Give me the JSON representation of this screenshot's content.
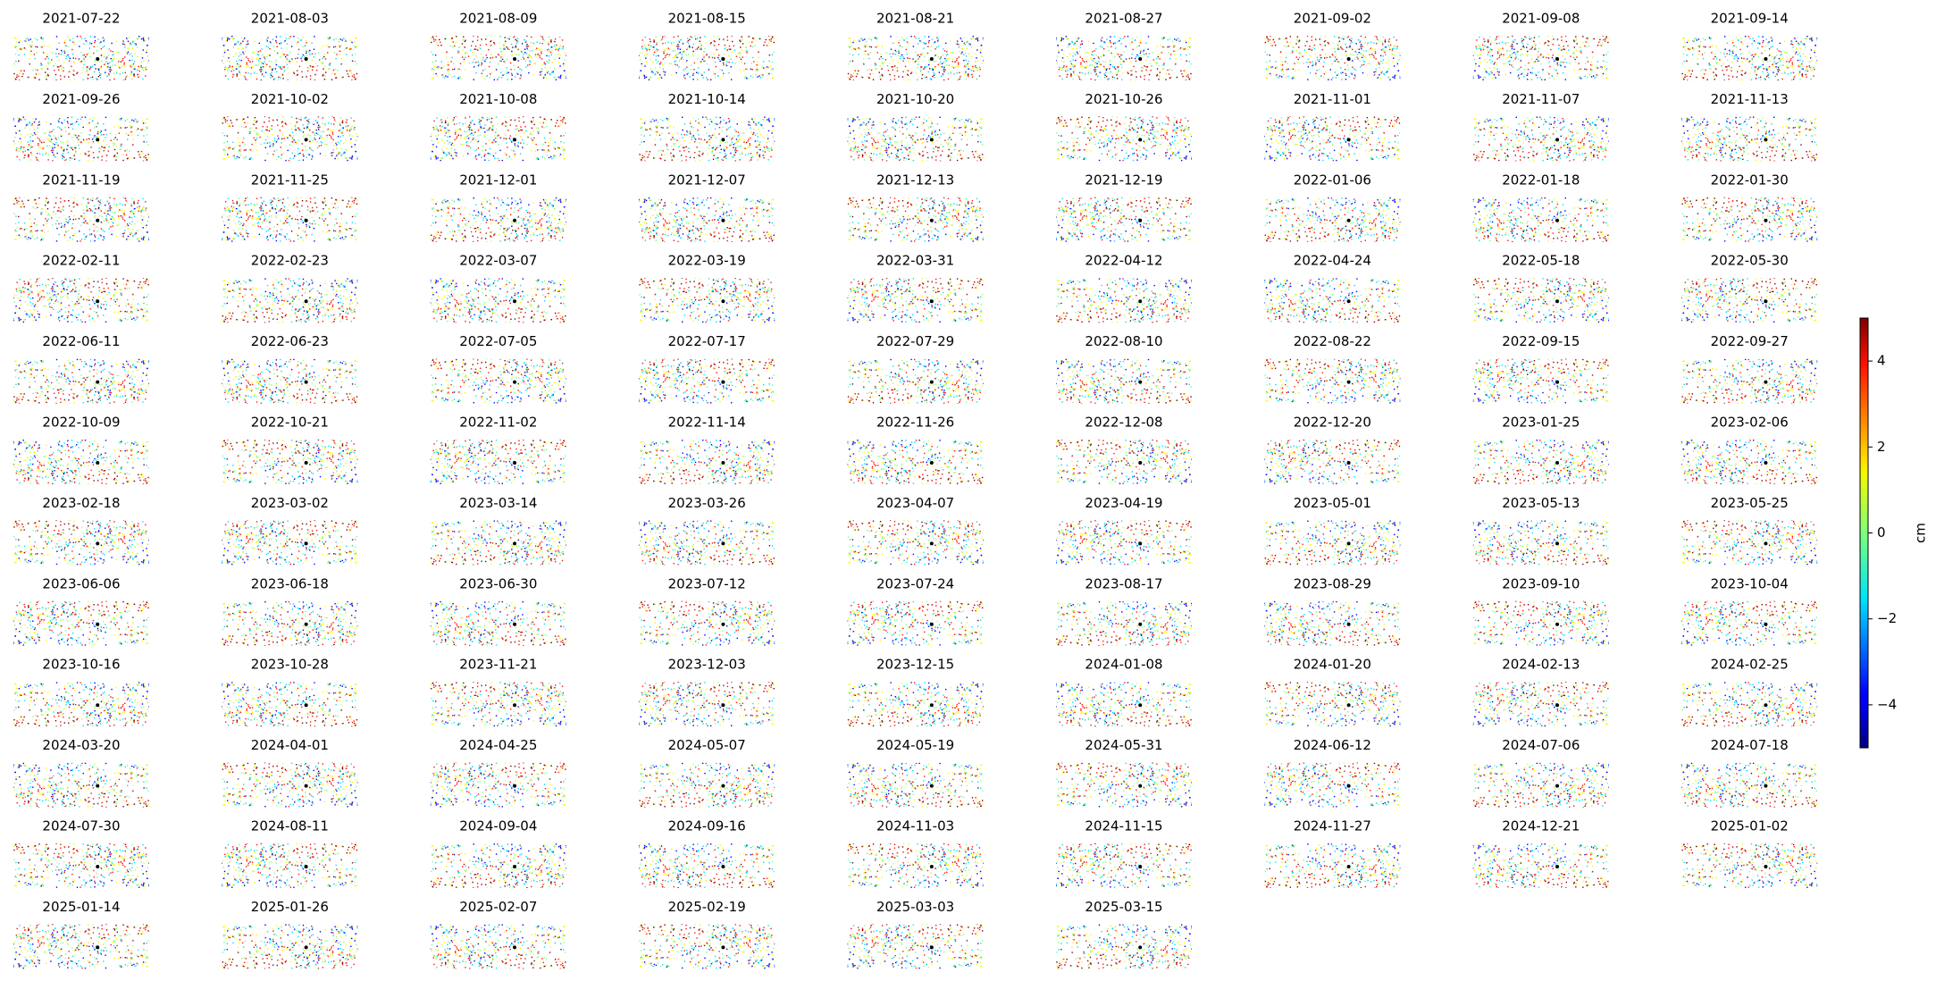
{
  "chart_data": {
    "type": "scatter",
    "colormap": "jet",
    "panels": [
      "2021-07-22",
      "2021-08-03",
      "2021-08-09",
      "2021-08-15",
      "2021-08-21",
      "2021-08-27",
      "2021-09-02",
      "2021-09-08",
      "2021-09-14",
      "2021-09-26",
      "2021-10-02",
      "2021-10-08",
      "2021-10-14",
      "2021-10-20",
      "2021-10-26",
      "2021-11-01",
      "2021-11-07",
      "2021-11-13",
      "2021-11-19",
      "2021-11-25",
      "2021-12-01",
      "2021-12-07",
      "2021-12-13",
      "2021-12-19",
      "2022-01-06",
      "2022-01-18",
      "2022-01-30",
      "2022-02-11",
      "2022-02-23",
      "2022-03-07",
      "2022-03-19",
      "2022-03-31",
      "2022-04-12",
      "2022-04-24",
      "2022-05-18",
      "2022-05-30",
      "2022-06-11",
      "2022-06-23",
      "2022-07-05",
      "2022-07-17",
      "2022-07-29",
      "2022-08-10",
      "2022-08-22",
      "2022-09-15",
      "2022-09-27",
      "2022-10-09",
      "2022-10-21",
      "2022-11-02",
      "2022-11-14",
      "2022-11-26",
      "2022-12-08",
      "2022-12-20",
      "2023-01-25",
      "2023-02-06",
      "2023-02-18",
      "2023-03-02",
      "2023-03-14",
      "2023-03-26",
      "2023-04-07",
      "2023-04-19",
      "2023-05-01",
      "2023-05-13",
      "2023-05-25",
      "2023-06-06",
      "2023-06-18",
      "2023-06-30",
      "2023-07-12",
      "2023-07-24",
      "2023-08-17",
      "2023-08-29",
      "2023-09-10",
      "2023-10-04",
      "2023-10-16",
      "2023-10-28",
      "2023-11-21",
      "2023-12-03",
      "2023-12-15",
      "2024-01-08",
      "2024-01-20",
      "2024-02-13",
      "2024-02-25",
      "2024-03-20",
      "2024-04-01",
      "2024-04-25",
      "2024-05-07",
      "2024-05-19",
      "2024-05-31",
      "2024-06-12",
      "2024-07-06",
      "2024-07-18",
      "2024-07-30",
      "2024-08-11",
      "2024-09-04",
      "2024-09-16",
      "2024-11-03",
      "2024-11-15",
      "2024-11-27",
      "2024-12-21",
      "2025-01-02",
      "2025-01-14",
      "2025-01-26",
      "2025-02-07",
      "2025-02-19",
      "2025-03-03",
      "2025-03-15"
    ],
    "colorbar": {
      "label": "cm",
      "clim": [
        -5,
        5
      ],
      "ticks": [
        {
          "value": -4,
          "label": "−4"
        },
        {
          "value": -2,
          "label": "−2"
        },
        0,
        2,
        4
      ]
    }
  }
}
